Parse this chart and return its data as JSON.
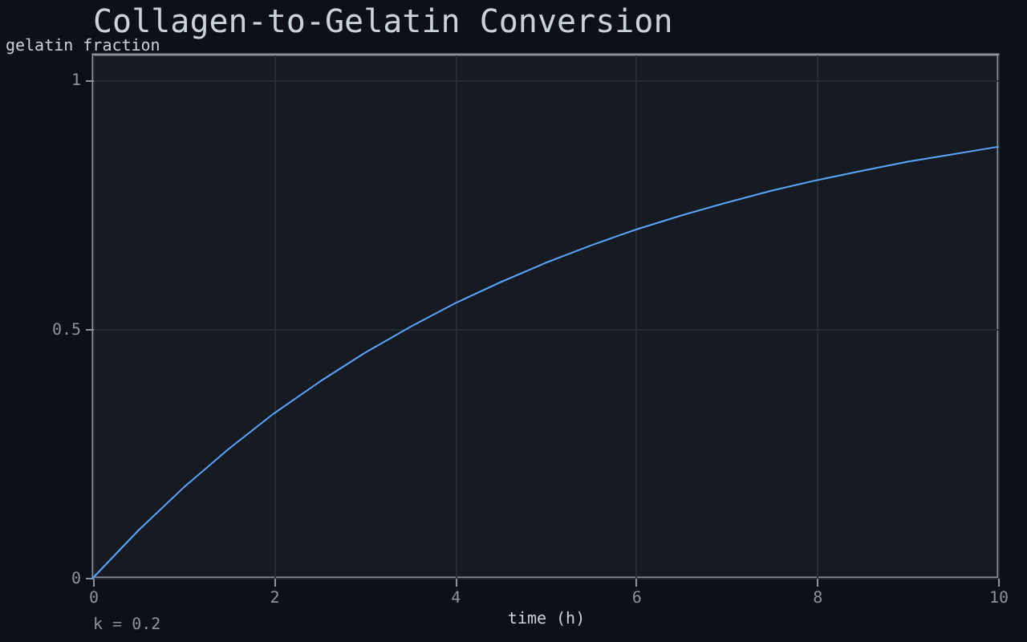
{
  "chart_data": {
    "type": "line",
    "title": "Collagen-to-Gelatin Conversion",
    "xlabel": "time (h)",
    "ylabel": "gelatin fraction",
    "annotations": [
      "k = 0.2"
    ],
    "x": [
      0,
      0.5,
      1,
      1.5,
      2,
      2.5,
      3,
      3.5,
      4,
      4.5,
      5,
      5.5,
      6,
      6.5,
      7,
      7.5,
      8,
      8.5,
      9,
      9.5,
      10
    ],
    "series": [
      {
        "color": "#58a6ff",
        "values": [
          0,
          0.095,
          0.181,
          0.259,
          0.33,
          0.393,
          0.451,
          0.503,
          0.551,
          0.593,
          0.632,
          0.667,
          0.699,
          0.727,
          0.753,
          0.777,
          0.798,
          0.817,
          0.835,
          0.85,
          0.865
        ]
      }
    ],
    "xlim": [
      0,
      10
    ],
    "xticks": [
      0,
      2,
      4,
      6,
      8,
      10
    ],
    "ylim": [
      0,
      1.05
    ],
    "yticks": [
      0,
      0.5,
      1
    ],
    "grid": true
  }
}
